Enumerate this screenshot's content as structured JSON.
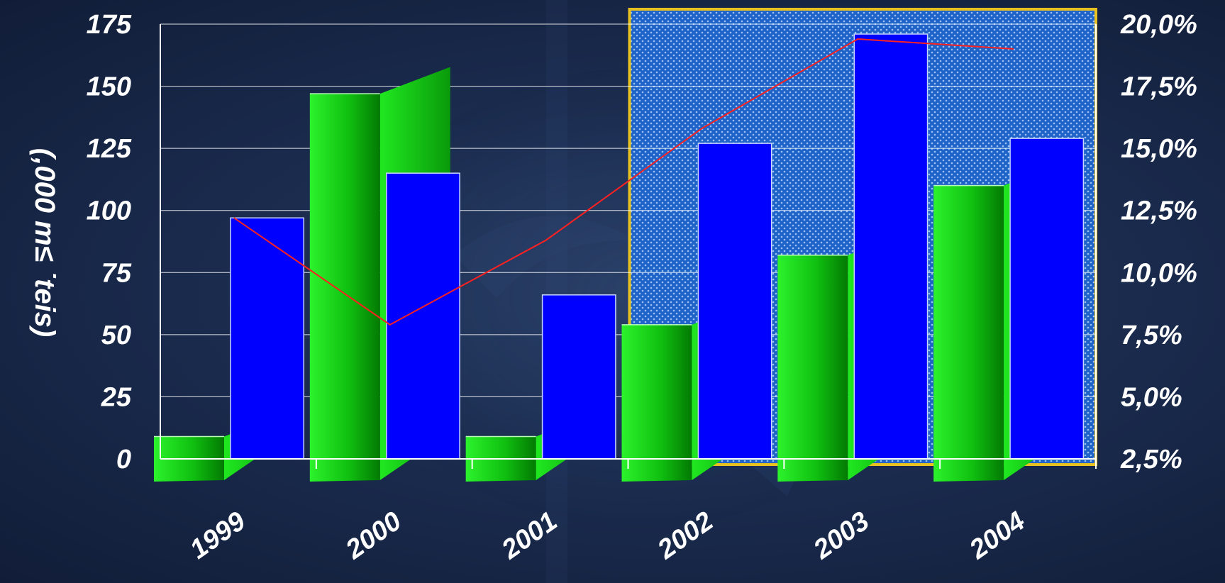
{
  "chart_data": {
    "type": "bar",
    "categories": [
      "1999",
      "2000",
      "2001",
      "2002",
      "2003",
      "2004"
    ],
    "ylabel": "(,000 m≤ ˙teis)",
    "ylim": [
      0,
      175
    ],
    "y_ticks": [
      "0",
      "25",
      "50",
      "75",
      "100",
      "125",
      "150",
      "175"
    ],
    "y2lim": [
      2.5,
      20.0
    ],
    "y2_ticks": [
      "2,5%",
      "5,0%",
      "7,5%",
      "10,0%",
      "12,5%",
      "15,0%",
      "17,5%",
      "20,0%"
    ],
    "grid": true,
    "highlight_region": {
      "from_category": "2002",
      "to_category": "2004"
    },
    "series": [
      {
        "type": "bar",
        "color": "#18e018",
        "values": [
          9,
          147,
          9,
          54,
          82,
          110
        ]
      },
      {
        "type": "bar",
        "color": "#0000ff",
        "values": [
          97,
          115,
          66,
          127,
          171,
          129
        ]
      },
      {
        "type": "line",
        "axis": "right",
        "color": "#ff2020",
        "values": [
          12.2,
          7.9,
          11.3,
          15.8,
          19.4,
          19.0
        ]
      }
    ]
  }
}
